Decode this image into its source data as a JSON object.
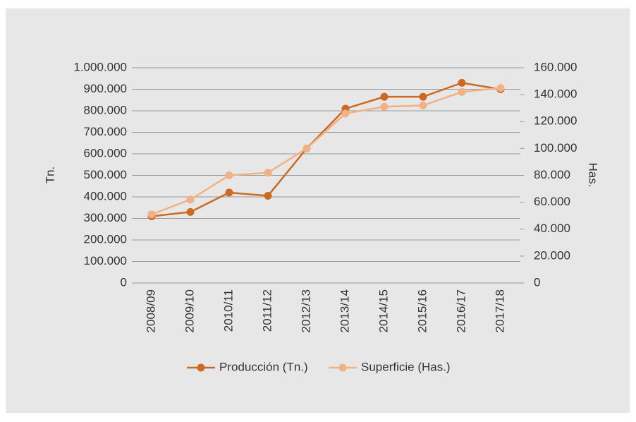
{
  "chart_data": {
    "type": "line",
    "categories": [
      "2008/09",
      "2009/10",
      "2010/11",
      "2011/12",
      "2012/13",
      "2013/14",
      "2014/15",
      "2015/16",
      "2016/17",
      "2017/18"
    ],
    "series": [
      {
        "name": "Producción (Tn.)",
        "color": "#cc6a22",
        "values": [
          310000,
          330000,
          420000,
          405000,
          625000,
          810000,
          865000,
          865000,
          930000,
          900000
        ]
      },
      {
        "name": "Superficie (Has.)",
        "color": "#f2b184",
        "axis": "y2",
        "values": [
          51000,
          62000,
          80000,
          82000,
          100000,
          126000,
          131000,
          132000,
          142000,
          145000
        ]
      }
    ],
    "ylabel": "Tn.",
    "y2label": "Has.",
    "ylim": [
      0,
      1000000
    ],
    "yticks": [
      0,
      {
        "value": 100000,
        "label": "100.000"
      },
      {
        "value": 200000,
        "label": "200.000"
      },
      {
        "value": 300000,
        "label": "300.000"
      },
      {
        "value": 400000,
        "label": "400.000"
      },
      {
        "value": 500000,
        "label": "500.000"
      },
      {
        "value": 600000,
        "label": "600.000"
      },
      {
        "value": 700000,
        "label": "700.000"
      },
      {
        "value": 800000,
        "label": "800.000"
      },
      {
        "value": 900000,
        "label": "900.000"
      },
      {
        "value": 1000000,
        "label": "1.000.000"
      }
    ],
    "y2lim": [
      0,
      160000
    ],
    "y2ticks": [
      0,
      {
        "value": 20000,
        "label": "20.000"
      },
      {
        "value": 40000,
        "label": "40.000"
      },
      {
        "value": 60000,
        "label": "60.000"
      },
      {
        "value": 80000,
        "label": "80.000"
      },
      {
        "value": 100000,
        "label": "100.000"
      },
      {
        "value": 120000,
        "label": "120.000"
      },
      {
        "value": 140000,
        "label": "140.000"
      },
      {
        "value": 160000,
        "label": "160.000"
      }
    ],
    "grid": true,
    "legend": "bottom"
  }
}
